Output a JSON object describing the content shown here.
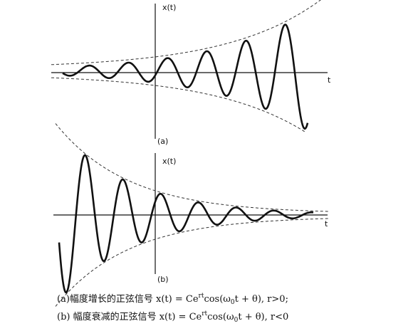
{
  "plot_a": {
    "y_label": "x(t)",
    "x_label": "t",
    "tag": "(a)"
  },
  "plot_b": {
    "y_label": "x(t)",
    "x_label": "t",
    "tag": "(b)"
  },
  "caption": [
    {
      "before": "(a)幅度增长的正弦信号 x(t) = Ce",
      "exp": "rt",
      "mid": "cos(ω",
      "sub": "0",
      "after": "t + θ), r>0;"
    },
    {
      "before": "(b) 幅度衰减的正弦信号 x(t) = Ce",
      "exp": "rt",
      "mid": "cos(ω",
      "sub": "0",
      "after": "t + θ), r<0"
    }
  ]
}
